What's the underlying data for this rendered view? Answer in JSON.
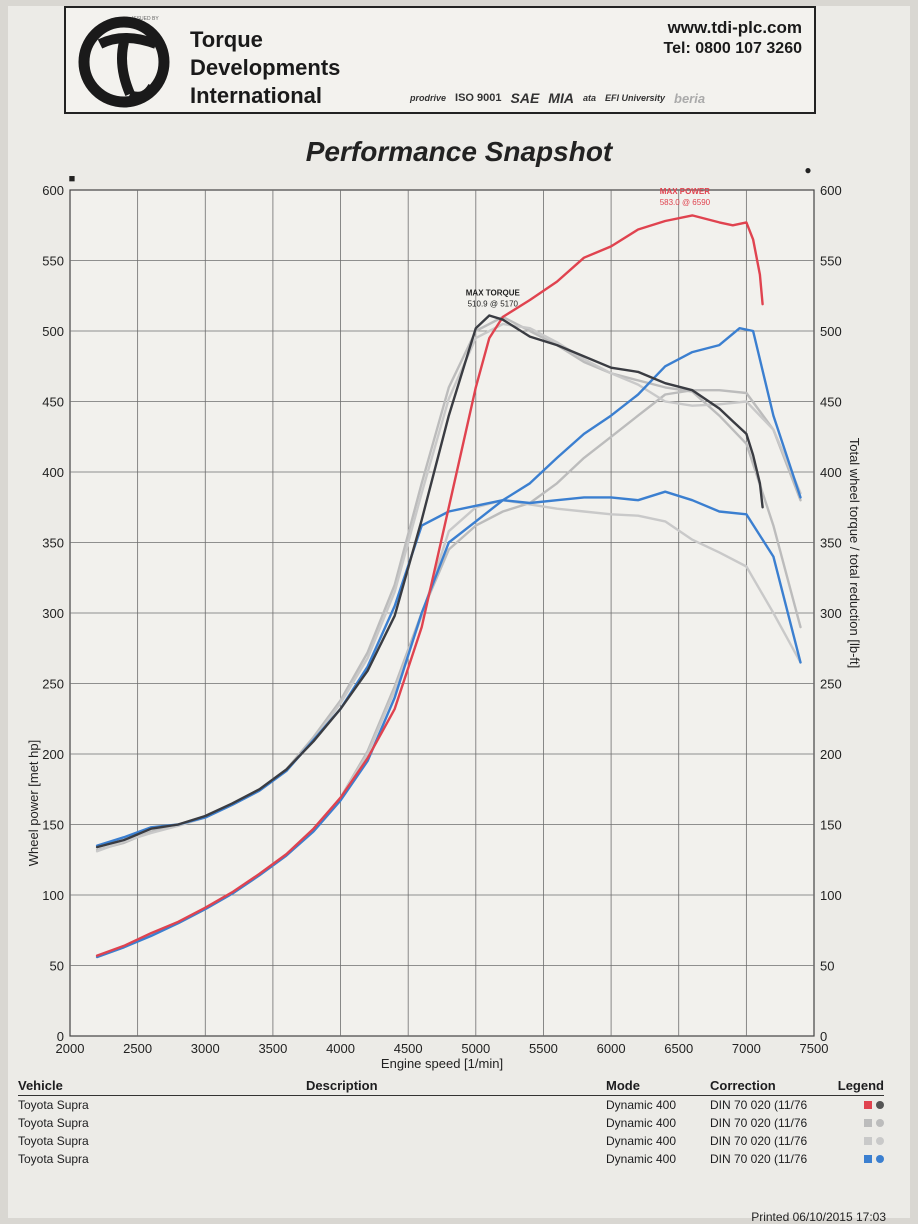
{
  "header": {
    "issued_by": "ISSUED BY",
    "company": [
      "Torque",
      "Developments",
      "International"
    ],
    "url": "www.tdi-plc.com",
    "tel": "Tel: 0800 107 3260",
    "certifications": [
      "prodrive",
      "ISO 9001",
      "SAE",
      "MIA",
      "ata",
      "EFI University",
      "beria"
    ]
  },
  "title": "Performance Snapshot",
  "chart_data": {
    "type": "line",
    "xlabel": "Engine speed [1/min]",
    "ylabel_left": "Wheel power [met hp]",
    "ylabel_right": "Total wheel torque / total reduction [lb-ft]",
    "xlim": [
      2000,
      7500
    ],
    "ylim_left": [
      0,
      600
    ],
    "ylim_right": [
      0,
      600
    ],
    "x_ticks": [
      2000,
      2500,
      3000,
      3500,
      4000,
      4500,
      5000,
      5500,
      6000,
      6500,
      7000,
      7500
    ],
    "y_ticks_left": [
      0,
      50,
      100,
      150,
      200,
      250,
      300,
      350,
      400,
      450,
      500,
      550,
      600
    ],
    "y_ticks_right": [
      0,
      50,
      100,
      150,
      200,
      250,
      300,
      350,
      400,
      450,
      500,
      550,
      600
    ],
    "grid": true,
    "axis_markers": {
      "left": "■",
      "right": "●"
    },
    "annotations": [
      {
        "label": "MAX POWER",
        "value": "583.0 @ 6590",
        "x": 6590,
        "y": 583,
        "color": "#e0434f"
      },
      {
        "label": "MAX TORQUE",
        "value": "510.9 @ 5170",
        "x": 5170,
        "y": 511,
        "color": "#222222"
      }
    ],
    "series": [
      {
        "run": 1,
        "measure": "power",
        "color": "#e0434f",
        "x": [
          2200,
          2400,
          2600,
          2800,
          3000,
          3200,
          3400,
          3600,
          3800,
          4000,
          4200,
          4400,
          4600,
          4800,
          5000,
          5100,
          5200,
          5400,
          5600,
          5800,
          6000,
          6200,
          6400,
          6600,
          6800,
          6900,
          7000,
          7050,
          7100,
          7120
        ],
        "y": [
          57,
          64,
          73,
          81,
          91,
          102,
          115,
          129,
          147,
          169,
          197,
          232,
          290,
          375,
          460,
          495,
          510,
          522,
          535,
          552,
          560,
          572,
          578,
          582,
          577,
          575,
          577,
          565,
          540,
          519
        ]
      },
      {
        "run": 1,
        "measure": "torque",
        "color": "#3a3c42",
        "x": [
          2200,
          2400,
          2600,
          2800,
          3000,
          3200,
          3400,
          3600,
          3800,
          4000,
          4200,
          4400,
          4600,
          4800,
          5000,
          5100,
          5200,
          5400,
          5600,
          5800,
          6000,
          6200,
          6400,
          6600,
          6800,
          6900,
          7000,
          7050,
          7100,
          7120
        ],
        "y": [
          134,
          139,
          147,
          150,
          156,
          165,
          175,
          189,
          209,
          232,
          259,
          298,
          366,
          440,
          502,
          511,
          508,
          496,
          490,
          482,
          474,
          471,
          463,
          458,
          445,
          436,
          427,
          412,
          392,
          375
        ]
      },
      {
        "run": 2,
        "measure": "power",
        "color": "#bcbcbc",
        "x": [
          2200,
          2400,
          2600,
          2800,
          3000,
          3200,
          3400,
          3600,
          3800,
          4000,
          4200,
          4400,
          4600,
          4800,
          5000,
          5200,
          5400,
          5600,
          5800,
          6000,
          6200,
          6400,
          6600,
          6800,
          7000,
          7200,
          7400
        ],
        "y": [
          56,
          63,
          72,
          80,
          90,
          101,
          114,
          128,
          146,
          169,
          202,
          248,
          300,
          345,
          362,
          372,
          378,
          392,
          410,
          425,
          440,
          455,
          458,
          458,
          456,
          430,
          380
        ]
      },
      {
        "run": 2,
        "measure": "torque",
        "color": "#bcbcbc",
        "x": [
          2200,
          2400,
          2600,
          2800,
          3000,
          3200,
          3400,
          3600,
          3800,
          4000,
          4200,
          4400,
          4600,
          4800,
          5000,
          5200,
          5400,
          5600,
          5800,
          6000,
          6200,
          6400,
          6600,
          6800,
          7000,
          7200,
          7400
        ],
        "y": [
          132,
          137,
          145,
          150,
          156,
          165,
          175,
          189,
          212,
          238,
          272,
          320,
          392,
          460,
          500,
          510,
          500,
          490,
          478,
          470,
          465,
          460,
          457,
          440,
          420,
          362,
          290
        ]
      },
      {
        "run": 3,
        "measure": "power",
        "color": "#c9c9c9",
        "x": [
          2200,
          2400,
          2600,
          2800,
          3000,
          3200,
          3400,
          3600,
          3800,
          4000,
          4200,
          4400,
          4600,
          4800,
          5000,
          5200,
          5400,
          5600,
          5800,
          6000,
          6200,
          6400,
          6600,
          6800,
          7000,
          7200,
          7400
        ],
        "y": [
          57,
          63,
          72,
          80,
          90,
          101,
          114,
          128,
          146,
          169,
          200,
          245,
          298,
          358,
          375,
          380,
          377,
          374,
          372,
          370,
          369,
          365,
          352,
          343,
          333,
          300,
          265
        ]
      },
      {
        "run": 3,
        "measure": "torque",
        "color": "#c9c9c9",
        "x": [
          2200,
          2400,
          2600,
          2800,
          3000,
          3200,
          3400,
          3600,
          3800,
          4000,
          4200,
          4400,
          4600,
          4800,
          5000,
          5200,
          5400,
          5600,
          5800,
          6000,
          6200,
          6400,
          6600,
          6800,
          7000,
          7200,
          7400
        ],
        "y": [
          131,
          138,
          144,
          149,
          155,
          164,
          174,
          188,
          210,
          236,
          268,
          315,
          385,
          452,
          495,
          505,
          502,
          492,
          480,
          470,
          462,
          450,
          447,
          448,
          450,
          430,
          385
        ]
      },
      {
        "run": 4,
        "measure": "power",
        "color": "#3b7fd0",
        "x": [
          2200,
          2400,
          2600,
          2800,
          3000,
          3200,
          3400,
          3600,
          3800,
          4000,
          4200,
          4400,
          4600,
          4800,
          5000,
          5200,
          5400,
          5600,
          5800,
          6000,
          6200,
          6400,
          6600,
          6800,
          6950,
          7050,
          7200,
          7400
        ],
        "y": [
          56,
          63,
          71,
          80,
          90,
          101,
          114,
          128,
          145,
          167,
          195,
          240,
          300,
          350,
          365,
          380,
          392,
          410,
          427,
          440,
          455,
          475,
          485,
          490,
          502,
          500,
          440,
          382
        ]
      },
      {
        "run": 4,
        "measure": "torque",
        "color": "#3b7fd0",
        "x": [
          2200,
          2400,
          2600,
          2800,
          3000,
          3200,
          3400,
          3600,
          3800,
          4000,
          4200,
          4400,
          4600,
          4800,
          5000,
          5200,
          5400,
          5600,
          5800,
          6000,
          6200,
          6400,
          6600,
          6800,
          7000,
          7200,
          7400
        ],
        "y": [
          135,
          141,
          148,
          150,
          155,
          164,
          174,
          188,
          210,
          232,
          262,
          305,
          362,
          372,
          376,
          380,
          378,
          380,
          382,
          382,
          380,
          386,
          380,
          372,
          370,
          340,
          265
        ]
      }
    ]
  },
  "table": {
    "headers": {
      "vehicle": "Vehicle",
      "description": "Description",
      "mode": "Mode",
      "correction": "Correction",
      "legend": "Legend"
    },
    "rows": [
      {
        "vehicle": "Toyota Supra",
        "description": "",
        "mode": "Dynamic 400",
        "correction": "DIN 70 020 (11/76",
        "color": "#e0434f",
        "color2": "#555555"
      },
      {
        "vehicle": "Toyota Supra",
        "description": "",
        "mode": "Dynamic 400",
        "correction": "DIN 70 020 (11/76",
        "color": "#bcbcbc",
        "color2": "#bcbcbc"
      },
      {
        "vehicle": "Toyota Supra",
        "description": "",
        "mode": "Dynamic 400",
        "correction": "DIN 70 020 (11/76",
        "color": "#c9c9c9",
        "color2": "#c9c9c9"
      },
      {
        "vehicle": "Toyota Supra",
        "description": "",
        "mode": "Dynamic 400",
        "correction": "DIN 70 020 (11/76",
        "color": "#3b7fd0",
        "color2": "#3b7fd0"
      }
    ]
  },
  "printed": "Printed 06/10/2015 17:03"
}
